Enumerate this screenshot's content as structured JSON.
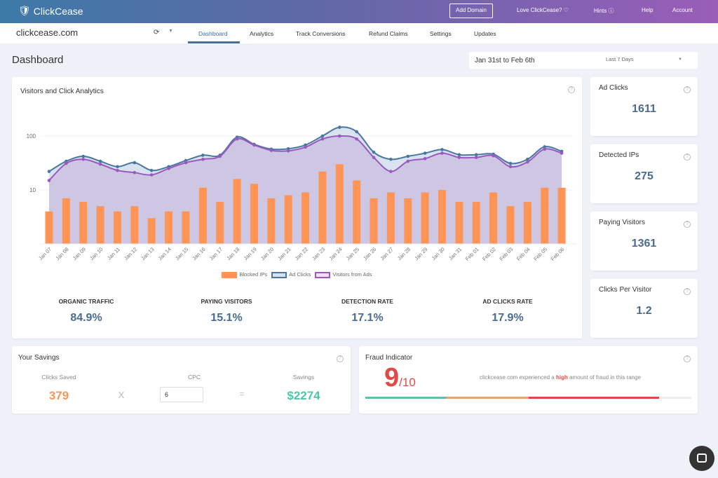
{
  "header": {
    "brand": "ClickCease",
    "add_domain": "Add Domain",
    "love": "Love ClickCease? ♡",
    "hints": "Hints ⓘ",
    "help": "Help",
    "account": "Account"
  },
  "nav": {
    "domain": "clickcease.com",
    "tabs": [
      "Dashboard",
      "Analytics",
      "Track Conversions",
      "Refund Claims",
      "Settings",
      "Updates"
    ]
  },
  "page": {
    "title": "Dashboard",
    "date_range": "Jan 31st to Feb 6th",
    "period": "Last 7 Days"
  },
  "analytics": {
    "title": "Visitors and Click Analytics",
    "stats": [
      {
        "label": "ORGANIC TRAFFIC",
        "value": "84.9%"
      },
      {
        "label": "PAYING VISITORS",
        "value": "15.1%"
      },
      {
        "label": "DETECTION RATE",
        "value": "17.1%"
      },
      {
        "label": "AD CLICKS RATE",
        "value": "17.9%"
      }
    ]
  },
  "side": [
    {
      "label": "Ad Clicks",
      "value": "1611"
    },
    {
      "label": "Detected IPs",
      "value": "275"
    },
    {
      "label": "Paying Visitors",
      "value": "1361"
    },
    {
      "label": "Clicks Per Visitor",
      "value": "1.2"
    }
  ],
  "savings": {
    "title": "Your Savings",
    "clicks_label": "Clicks Saved",
    "clicks": "379",
    "times": "X",
    "cpc_label": "CPC",
    "cpc": "6",
    "equals": "=",
    "savings_label": "Savings",
    "savings": "$2274"
  },
  "fraud": {
    "title": "Fraud Indicator",
    "score": "9",
    "outof": "/10",
    "msg_pre": "clickcease.com experienced a ",
    "msg_high": "high",
    "msg_post": " amount of fraud in this range",
    "level": 0.9
  },
  "chart_data": {
    "type": "bar+line",
    "yscale": "log",
    "ylim": [
      1,
      200
    ],
    "yticks": [
      "10",
      "100"
    ],
    "categories": [
      "Jan 07",
      "Jan 08",
      "Jan 09",
      "Jan 10",
      "Jan 11",
      "Jan 12",
      "Jan 13",
      "Jan 14",
      "Jan 15",
      "Jan 16",
      "Jan 17",
      "Jan 18",
      "Jan 19",
      "Jan 20",
      "Jan 21",
      "Jan 22",
      "Jan 23",
      "Jan 24",
      "Jan 25",
      "Jan 26",
      "Jan 27",
      "Jan 28",
      "Jan 29",
      "Jan 30",
      "Jan 31",
      "Feb 01",
      "Feb 02",
      "Feb 03",
      "Feb 04",
      "Feb 05",
      "Feb 06"
    ],
    "series": [
      {
        "name": "Blocked IPs",
        "type": "bar",
        "color": "#ff9457",
        "values": [
          4,
          7,
          6,
          5,
          4,
          5,
          3,
          4,
          4,
          11,
          6,
          16,
          13,
          7,
          8,
          9,
          22,
          30,
          15,
          7,
          9,
          7,
          9,
          10,
          6,
          6,
          9,
          5,
          6,
          11,
          11
        ]
      },
      {
        "name": "Ad Clicks",
        "type": "line",
        "color": "#4a77a0",
        "values": [
          22,
          34,
          42,
          34,
          27,
          32,
          23,
          27,
          35,
          44,
          44,
          95,
          70,
          57,
          58,
          68,
          100,
          145,
          120,
          50,
          37,
          42,
          48,
          56,
          45,
          45,
          46,
          31,
          37,
          63,
          52
        ]
      },
      {
        "name": "Visitors from Ads",
        "type": "line",
        "color": "#9b59c0",
        "values": [
          15,
          31,
          37,
          30,
          23,
          21,
          19,
          25,
          32,
          37,
          42,
          88,
          68,
          54,
          53,
          62,
          88,
          100,
          88,
          40,
          22,
          34,
          38,
          48,
          40,
          40,
          43,
          27,
          33,
          57,
          48
        ]
      }
    ]
  }
}
